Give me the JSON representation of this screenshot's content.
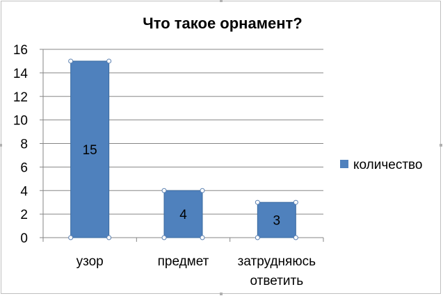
{
  "chart_data": {
    "type": "bar",
    "title": "Что такое орнамент?",
    "categories": [
      "узор",
      "предмет",
      "затрудняюсь ответить"
    ],
    "category_lines": [
      [
        "узор"
      ],
      [
        "предмет"
      ],
      [
        "затрудняюсь",
        "ответить"
      ]
    ],
    "series": [
      {
        "name": "количество",
        "values": [
          15,
          4,
          3
        ],
        "color": "#4f81bd"
      }
    ],
    "data_labels": [
      "15",
      "4",
      "3"
    ],
    "ylim": [
      0,
      16
    ],
    "yticks": [
      0,
      2,
      4,
      6,
      8,
      10,
      12,
      14,
      16
    ],
    "xlabel": "",
    "ylabel": "",
    "grid": true,
    "legend_position": "right"
  }
}
